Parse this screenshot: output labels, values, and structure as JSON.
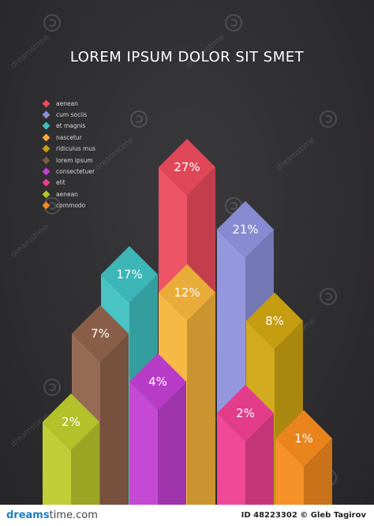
{
  "chart_data": {
    "type": "bar",
    "title": "LOREM IPSUM DOLOR SIT SMET",
    "legend": [
      {
        "label": "aenean",
        "color": "#e94a5c"
      },
      {
        "label": "cum sociis",
        "color": "#8b8fd6"
      },
      {
        "label": "et magnis",
        "color": "#3fbfbf"
      },
      {
        "label": "nascetur",
        "color": "#f5a93a"
      },
      {
        "label": "ridiculus mus",
        "color": "#c9a012"
      },
      {
        "label": "lorem ipsum",
        "color": "#7a5a48"
      },
      {
        "label": "consectetuer",
        "color": "#c43fd0"
      },
      {
        "label": "elit",
        "color": "#ec3f8e"
      },
      {
        "label": "aenean",
        "color": "#b4c52a"
      },
      {
        "label": "commodo",
        "color": "#f28a22"
      }
    ],
    "series": [
      {
        "value": 2,
        "label": "2%",
        "color": "#bccb2c"
      },
      {
        "value": 7,
        "label": "7%",
        "color": "#8f634c"
      },
      {
        "value": 17,
        "label": "17%",
        "color": "#3fc0c1"
      },
      {
        "value": 4,
        "label": "4%",
        "color": "#c23fd2"
      },
      {
        "value": 27,
        "label": "27%",
        "color": "#ec4b5e"
      },
      {
        "value": 12,
        "label": "12%",
        "color": "#f6b53c"
      },
      {
        "value": 21,
        "label": "21%",
        "color": "#8e92dc"
      },
      {
        "value": 2,
        "label": "2%",
        "color": "#ee3f92"
      },
      {
        "value": 8,
        "label": "8%",
        "color": "#cfa511"
      },
      {
        "value": 1,
        "label": "1%",
        "color": "#f58b1f"
      }
    ],
    "legend_position": "top-left"
  },
  "watermark": {
    "text": "dreamstime"
  },
  "footer": {
    "logo_main": "dreams",
    "logo_rest": "time.com",
    "id_text": "ID 48223302 © Gleb Tagirov"
  }
}
